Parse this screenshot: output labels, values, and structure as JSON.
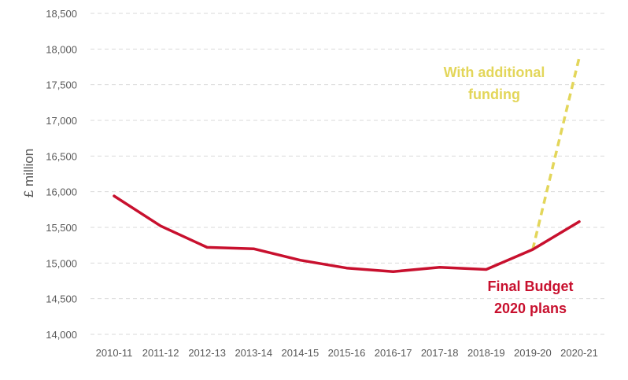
{
  "chart_data": {
    "type": "line",
    "categories": [
      "2010-11",
      "2011-12",
      "2012-13",
      "2013-14",
      "2014-15",
      "2015-16",
      "2016-17",
      "2017-18",
      "2018-19",
      "2019-20",
      "2020-21"
    ],
    "ylabel": "£ million",
    "ylim": [
      14000,
      18500
    ],
    "yticks": [
      14000,
      14500,
      15000,
      15500,
      16000,
      16500,
      17000,
      17500,
      18000,
      18500
    ],
    "ytick_labels": [
      "14,000",
      "14,500",
      "15,000",
      "15,500",
      "16,000",
      "16,500",
      "17,000",
      "17,500",
      "18,000",
      "18,500"
    ],
    "grid": true,
    "series": [
      {
        "name": "Final Budget 2020 plans",
        "label_lines": [
          "Final Budget",
          "2020 plans"
        ],
        "color": "#c8102e",
        "style": "solid",
        "values": [
          15940,
          15520,
          15220,
          15200,
          15040,
          14930,
          14880,
          14940,
          14910,
          15190,
          15580
        ]
      },
      {
        "name": "With additional funding",
        "label_lines": [
          "With additional",
          "funding"
        ],
        "color": "#e3d65a",
        "style": "dashed",
        "values": [
          null,
          null,
          null,
          null,
          null,
          null,
          null,
          null,
          null,
          15190,
          17880
        ]
      }
    ]
  }
}
